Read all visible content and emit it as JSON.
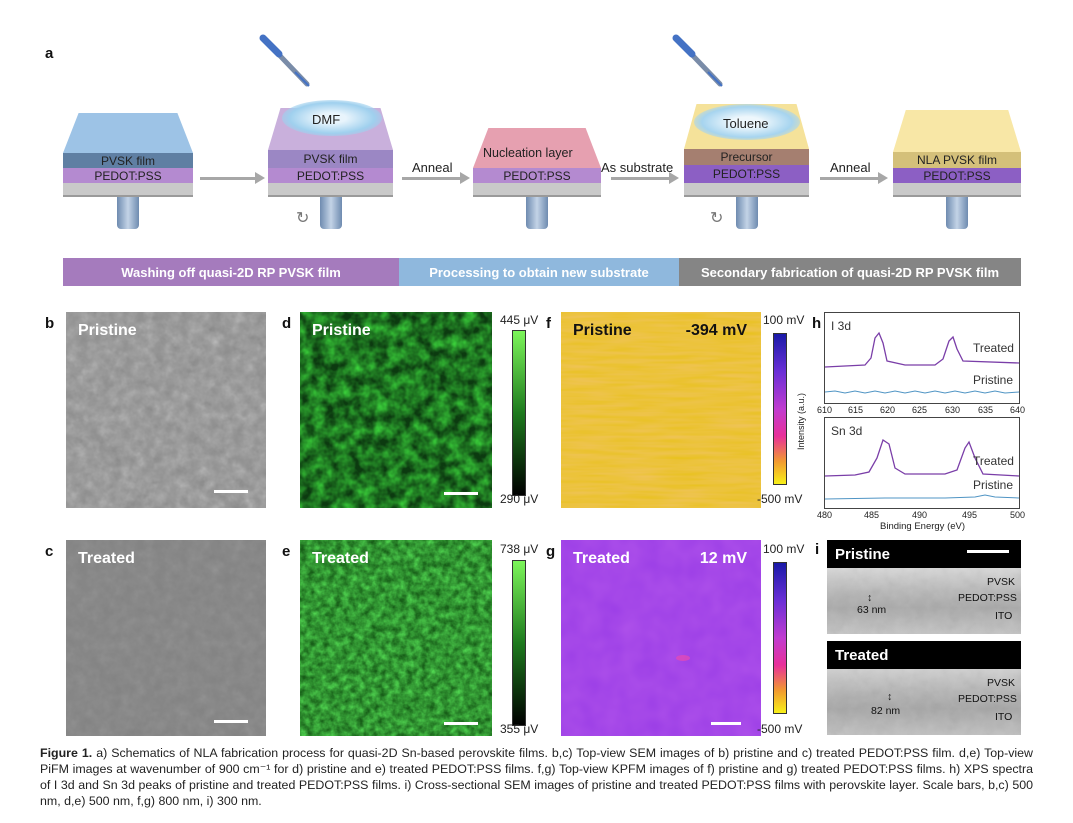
{
  "panel_letters": {
    "a": "a",
    "b": "b",
    "c": "c",
    "d": "d",
    "e": "e",
    "f": "f",
    "g": "g",
    "h": "h",
    "i": "i"
  },
  "schematic": {
    "step1": {
      "top_layer": "PVSK film",
      "bottom_layer": "PEDOT:PSS"
    },
    "step2": {
      "drop": "DMF",
      "top_layer": "PVSK film",
      "bottom_layer": "PEDOT:PSS"
    },
    "step3": {
      "top_layer": "Nucleation layer",
      "bottom_layer": "PEDOT:PSS"
    },
    "step4": {
      "drop": "Toluene",
      "top_layer": "Precursor",
      "bottom_layer": "PEDOT:PSS"
    },
    "step5": {
      "top_layer": "NLA PVSK film",
      "bottom_layer": "PEDOT:PSS"
    },
    "arrows": [
      "Anneal",
      "As substrate",
      "Anneal"
    ],
    "bands": [
      {
        "label": "Washing off quasi-2D RP PVSK film",
        "color": "#a57bbd"
      },
      {
        "label": "Processing to obtain new substrate",
        "color": "#8fb8dd"
      },
      {
        "label": "Secondary fabrication of quasi-2D RP PVSK film",
        "color": "#858585"
      }
    ]
  },
  "panels": {
    "b": {
      "label": "Pristine"
    },
    "c": {
      "label": "Treated"
    },
    "d": {
      "label": "Pristine",
      "cbar_max": "445 μV",
      "cbar_min": "290 μV"
    },
    "e": {
      "label": "Treated",
      "cbar_max": "738 μV",
      "cbar_min": "355 μV"
    },
    "f": {
      "label": "Pristine",
      "value": "-394 mV",
      "cbar_max": "100 mV",
      "cbar_min": "-500 mV"
    },
    "g": {
      "label": "Treated",
      "value": "12 mV",
      "cbar_max": "100 mV",
      "cbar_min": "-500 mV"
    }
  },
  "xps": {
    "ylabel": "Intensity (a.u.)",
    "xlabel": "Binding Energy (eV)",
    "top": {
      "title": "I 3d",
      "treated": "Treated",
      "pristine": "Pristine",
      "xticks": [
        "610",
        "615",
        "620",
        "625",
        "630",
        "635",
        "640"
      ]
    },
    "bottom": {
      "title": "Sn 3d",
      "treated": "Treated",
      "pristine": "Pristine",
      "xticks": [
        "480",
        "485",
        "490",
        "495",
        "500"
      ]
    }
  },
  "sem": {
    "pristine": {
      "head": "Pristine",
      "pvsk": "PVSK",
      "pedot": "PEDOT:PSS",
      "ito": "ITO",
      "thickness": "63 nm"
    },
    "treated": {
      "head": "Treated",
      "pvsk": "PVSK",
      "pedot": "PEDOT:PSS",
      "ito": "ITO",
      "thickness": "82 nm"
    }
  },
  "caption": {
    "lead": "Figure 1.",
    "text": "a) Schematics of NLA fabrication process for quasi-2D Sn-based perovskite films. b,c) Top-view SEM images of b) pristine and c) treated PEDOT:PSS film. d,e) Top-view PiFM images at wavenumber of 900 cm⁻¹ for d) pristine and e) treated PEDOT:PSS films. f,g) Top-view KPFM images of f) pristine and g) treated PEDOT:PSS films. h) XPS spectra of I 3d and Sn 3d peaks of pristine and treated PEDOT:PSS films. i) Cross-sectional SEM images of pristine and treated PEDOT:PSS films with perovskite layer. Scale bars, b,c) 500 nm, d,e) 500 nm, f,g) 800 nm, i) 300 nm."
  }
}
